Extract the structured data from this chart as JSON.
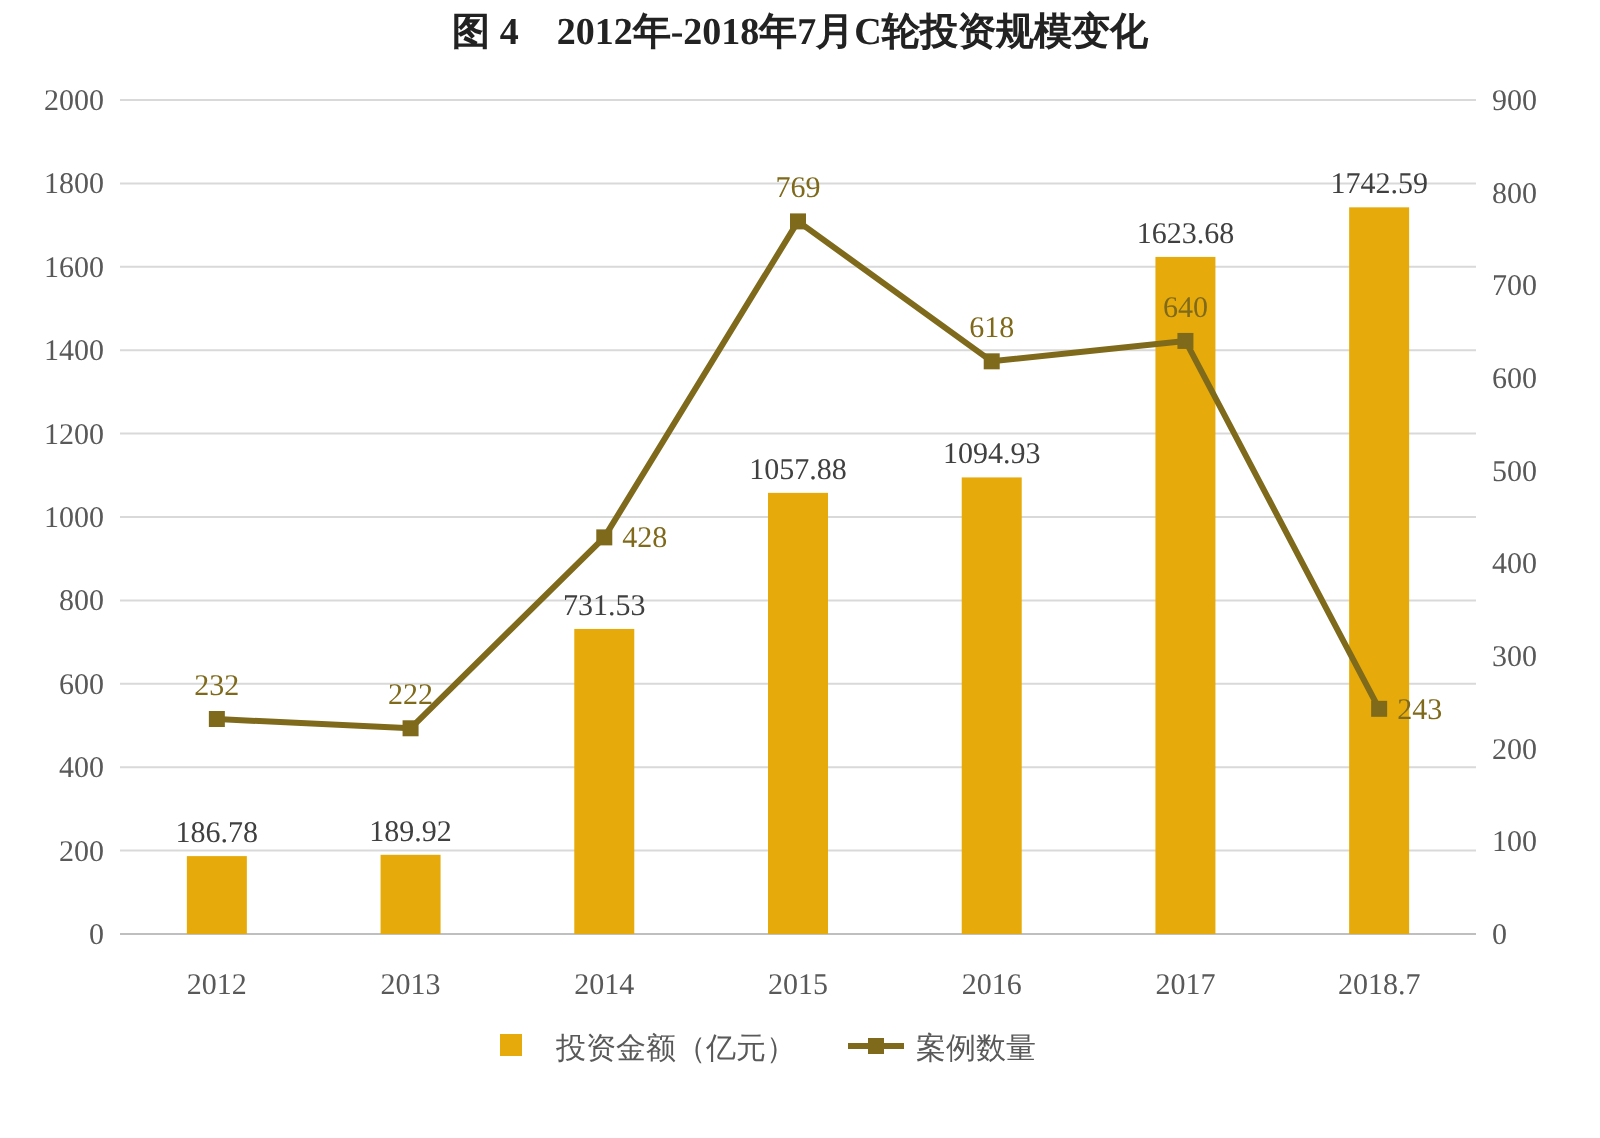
{
  "chart_data": {
    "type": "bar",
    "title": "图 4　2012年-2018年7月C轮投资规模变化",
    "categories": [
      "2012",
      "2013",
      "2014",
      "2015",
      "2016",
      "2017",
      "2018.7"
    ],
    "series": [
      {
        "name": "投资金额（亿元）",
        "color": "#e6ab0a",
        "values": [
          186.78,
          189.92,
          731.53,
          1057.88,
          1094.93,
          1623.68,
          1742.59
        ]
      },
      {
        "name": "案例数量",
        "type": "line",
        "axis": "y2",
        "color": "#7f6a1c",
        "values": [
          232,
          222,
          428,
          769,
          618,
          640,
          243
        ]
      }
    ],
    "ylim": [
      0,
      2000
    ],
    "yticks": [
      0,
      200,
      400,
      600,
      800,
      1000,
      1200,
      1400,
      1600,
      1800,
      2000
    ],
    "y2lim": [
      0,
      900
    ],
    "y2ticks": [
      0,
      100,
      200,
      300,
      400,
      500,
      600,
      700,
      800,
      900
    ],
    "grid": "y",
    "legend": "bottom",
    "marker": "square",
    "line_style": "solid",
    "data_labels": true
  }
}
